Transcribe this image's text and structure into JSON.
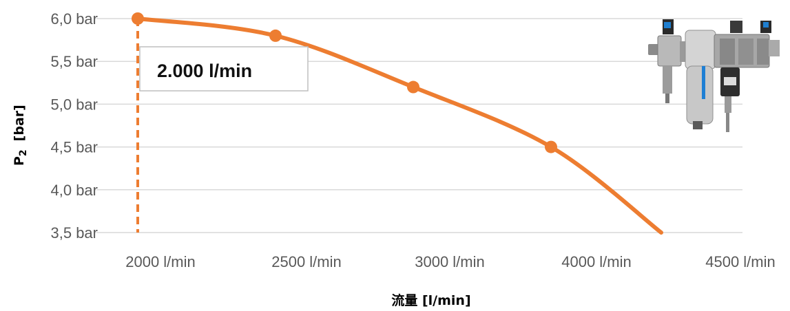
{
  "chart_data": {
    "type": "line",
    "xlabel": "流量 [l/min]",
    "ylabel_main": "P",
    "ylabel_sub": "2",
    "ylabel_unit": "[bar]",
    "x_tick_labels": [
      "2000 l/min",
      "2500 l/min",
      "3000 l/min",
      "4000 l/min",
      "4500 l/min"
    ],
    "y_tick_labels": [
      "6,0 bar",
      "5,5 bar",
      "5,0 bar",
      "4,5 bar",
      "4,0 bar",
      "3,5 bar"
    ],
    "y_ticks": [
      6.0,
      5.5,
      5.0,
      4.5,
      4.0,
      3.5
    ],
    "ylim": [
      3.5,
      6.0
    ],
    "grid": true,
    "series": [
      {
        "color": "#ED7D31",
        "points": [
          {
            "x": 2000,
            "y": 6.0
          },
          {
            "x": 2500,
            "y": 5.8
          },
          {
            "x": 3000,
            "y": 5.2
          },
          {
            "x": 4000,
            "y": 4.5
          },
          {
            "x": 4400,
            "y": 3.5
          }
        ]
      }
    ],
    "reference_line": {
      "x": 2000,
      "style": "dashed",
      "color": "#ED7D31"
    },
    "callout": {
      "text": "2.000 l/min"
    }
  },
  "product_image": {
    "icon": "filter-regulator-unit-icon"
  }
}
